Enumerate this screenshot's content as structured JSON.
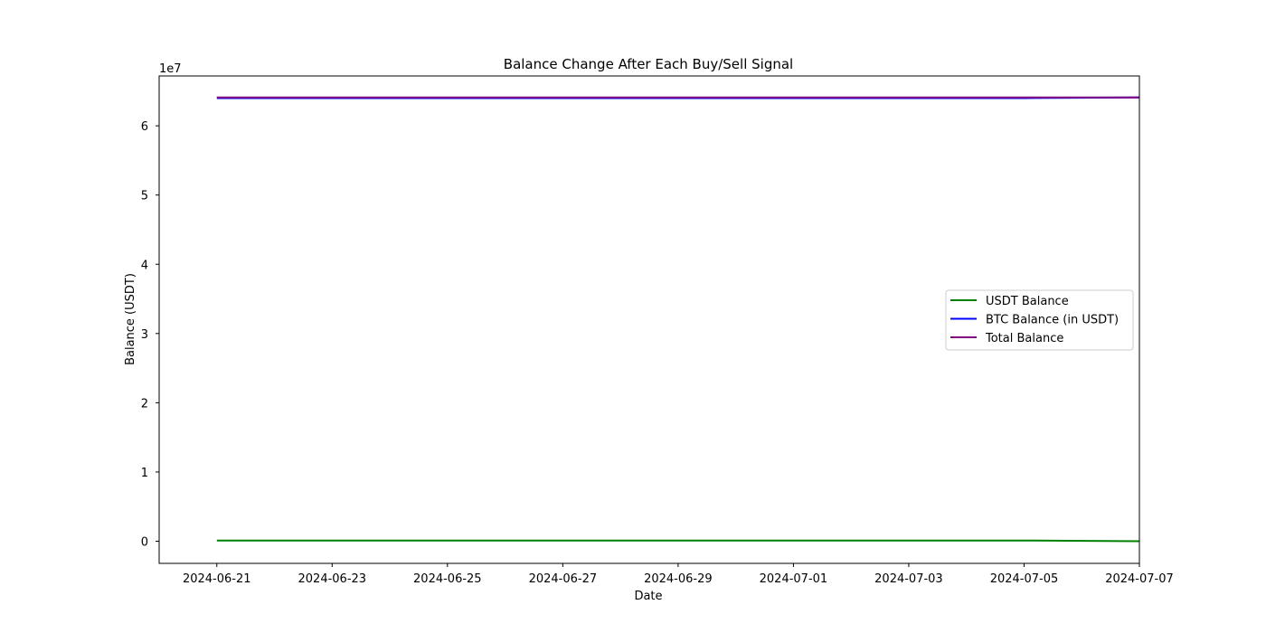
{
  "chart_data": {
    "type": "line",
    "title": "Balance Change After Each Buy/Sell Signal",
    "xlabel": "Date",
    "ylabel": "Balance (USDT)",
    "y_offset_label": "1e7",
    "xlim": [
      "2024-06-20",
      "2024-07-07"
    ],
    "ylim": [
      -3200000,
      67200000
    ],
    "x_ticks": [
      "2024-06-21",
      "2024-06-23",
      "2024-06-25",
      "2024-06-27",
      "2024-06-29",
      "2024-07-01",
      "2024-07-03",
      "2024-07-05",
      "2024-07-07"
    ],
    "y_ticks": [
      0,
      10000000,
      20000000,
      30000000,
      40000000,
      50000000,
      60000000
    ],
    "y_tick_labels": [
      "0",
      "1",
      "2",
      "3",
      "4",
      "5",
      "6"
    ],
    "grid": false,
    "legend_position": "center-right",
    "series": [
      {
        "name": "USDT Balance",
        "color": "#008000",
        "x": [
          "2024-06-21",
          "2024-07-05",
          "2024-07-07"
        ],
        "y": [
          100000,
          100000,
          0
        ]
      },
      {
        "name": "BTC Balance (in USDT)",
        "color": "#0000ff",
        "x": [
          "2024-06-21",
          "2024-07-05",
          "2024-07-07"
        ],
        "y": [
          64000000,
          64000000,
          64100000
        ]
      },
      {
        "name": "Total Balance",
        "color": "#800080",
        "x": [
          "2024-06-21",
          "2024-07-05",
          "2024-07-07"
        ],
        "y": [
          64100000,
          64100000,
          64100000
        ]
      }
    ]
  }
}
